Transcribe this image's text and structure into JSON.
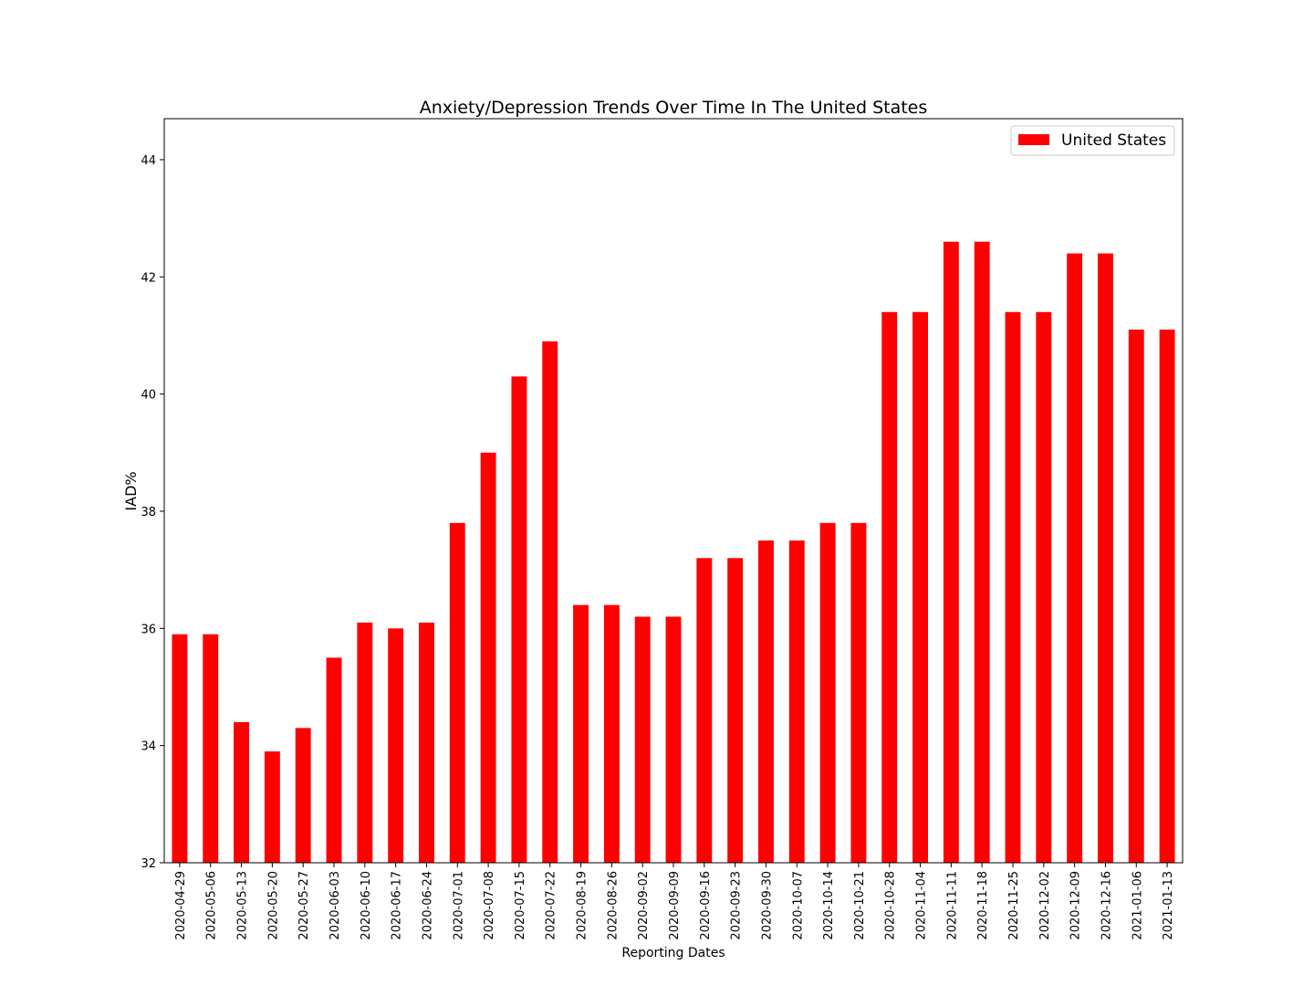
{
  "chart_data": {
    "type": "bar",
    "title": "Anxiety/Depression Trends Over Time In The United States",
    "xlabel": "Reporting Dates",
    "ylabel": "IAD%",
    "ylim": [
      32,
      44.7
    ],
    "yticks": [
      32,
      34,
      36,
      38,
      40,
      42,
      44
    ],
    "grid": false,
    "legend_position": "top-right",
    "categories": [
      "2020-04-29",
      "2020-05-06",
      "2020-05-13",
      "2020-05-20",
      "2020-05-27",
      "2020-06-03",
      "2020-06-10",
      "2020-06-17",
      "2020-06-24",
      "2020-07-01",
      "2020-07-08",
      "2020-07-15",
      "2020-07-22",
      "2020-08-19",
      "2020-08-26",
      "2020-09-02",
      "2020-09-09",
      "2020-09-16",
      "2020-09-23",
      "2020-09-30",
      "2020-10-07",
      "2020-10-14",
      "2020-10-21",
      "2020-10-28",
      "2020-11-04",
      "2020-11-11",
      "2020-11-18",
      "2020-11-25",
      "2020-12-02",
      "2020-12-09",
      "2020-12-16",
      "2021-01-06",
      "2021-01-13"
    ],
    "series": [
      {
        "name": "United States",
        "color": "#ff0000",
        "values": [
          35.9,
          35.9,
          34.4,
          33.9,
          34.3,
          35.5,
          36.1,
          36.0,
          36.1,
          37.8,
          39.0,
          40.3,
          40.9,
          36.4,
          36.4,
          36.2,
          36.2,
          37.2,
          37.2,
          37.5,
          37.5,
          37.8,
          37.8,
          41.4,
          41.4,
          42.6,
          42.6,
          41.4,
          41.4,
          42.4,
          42.4,
          41.1,
          41.1
        ]
      }
    ]
  }
}
